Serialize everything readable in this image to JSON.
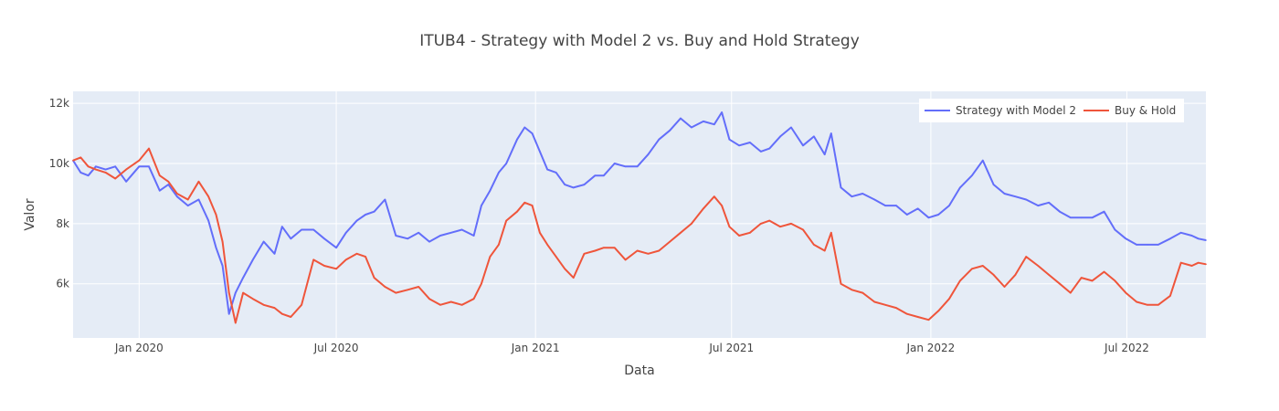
{
  "chart_data": {
    "type": "line",
    "title": "ITUB4 - Strategy with Model 2 vs. Buy and Hold Strategy",
    "xlabel": "Data",
    "ylabel": "Valor",
    "xlim": [
      "2019-11-01",
      "2022-09-12"
    ],
    "ylim": [
      4200,
      12400
    ],
    "x_ticks": [
      {
        "date": "2020-01-01",
        "label": "Jan 2020"
      },
      {
        "date": "2020-07-01",
        "label": "Jul 2020"
      },
      {
        "date": "2021-01-01",
        "label": "Jan 2021"
      },
      {
        "date": "2021-07-01",
        "label": "Jul 2021"
      },
      {
        "date": "2022-01-01",
        "label": "Jan 2022"
      },
      {
        "date": "2022-07-01",
        "label": "Jul 2022"
      }
    ],
    "y_ticks": [
      {
        "value": 6000,
        "label": "6k"
      },
      {
        "value": 8000,
        "label": "8k"
      },
      {
        "value": 10000,
        "label": "10k"
      },
      {
        "value": 12000,
        "label": "12k"
      }
    ],
    "grid": true,
    "legend_position": "top-right",
    "background_color": "#e5ecf6",
    "series": [
      {
        "name": "Strategy with Model 2",
        "color": "#636efa",
        "x": [
          "2019-11-01",
          "2019-11-08",
          "2019-11-15",
          "2019-11-22",
          "2019-12-01",
          "2019-12-10",
          "2019-12-20",
          "2020-01-01",
          "2020-01-10",
          "2020-01-20",
          "2020-01-28",
          "2020-02-05",
          "2020-02-15",
          "2020-02-25",
          "2020-03-05",
          "2020-03-12",
          "2020-03-18",
          "2020-03-24",
          "2020-03-30",
          "2020-04-06",
          "2020-04-15",
          "2020-04-25",
          "2020-05-05",
          "2020-05-12",
          "2020-05-20",
          "2020-05-30",
          "2020-06-10",
          "2020-06-20",
          "2020-07-01",
          "2020-07-10",
          "2020-07-20",
          "2020-07-28",
          "2020-08-05",
          "2020-08-15",
          "2020-08-25",
          "2020-09-05",
          "2020-09-15",
          "2020-09-25",
          "2020-10-05",
          "2020-10-15",
          "2020-10-25",
          "2020-11-05",
          "2020-11-12",
          "2020-11-20",
          "2020-11-28",
          "2020-12-05",
          "2020-12-15",
          "2020-12-22",
          "2020-12-29",
          "2021-01-05",
          "2021-01-12",
          "2021-01-20",
          "2021-01-28",
          "2021-02-05",
          "2021-02-15",
          "2021-02-25",
          "2021-03-05",
          "2021-03-15",
          "2021-03-25",
          "2021-04-05",
          "2021-04-15",
          "2021-04-25",
          "2021-05-05",
          "2021-05-15",
          "2021-05-25",
          "2021-06-05",
          "2021-06-15",
          "2021-06-22",
          "2021-06-29",
          "2021-07-08",
          "2021-07-18",
          "2021-07-28",
          "2021-08-05",
          "2021-08-15",
          "2021-08-25",
          "2021-09-05",
          "2021-09-15",
          "2021-09-25",
          "2021-10-01",
          "2021-10-10",
          "2021-10-20",
          "2021-10-30",
          "2021-11-10",
          "2021-11-20",
          "2021-11-30",
          "2021-12-10",
          "2021-12-20",
          "2021-12-30",
          "2022-01-08",
          "2022-01-18",
          "2022-01-28",
          "2022-02-08",
          "2022-02-18",
          "2022-02-28",
          "2022-03-10",
          "2022-03-20",
          "2022-03-30",
          "2022-04-10",
          "2022-04-20",
          "2022-04-30",
          "2022-05-10",
          "2022-05-20",
          "2022-05-30",
          "2022-06-10",
          "2022-06-20",
          "2022-06-30",
          "2022-07-10",
          "2022-07-20",
          "2022-07-30",
          "2022-08-10",
          "2022-08-20",
          "2022-08-30",
          "2022-09-05",
          "2022-09-12"
        ],
        "y": [
          10100,
          9700,
          9600,
          9900,
          9800,
          9900,
          9400,
          9900,
          9900,
          9100,
          9300,
          8900,
          8600,
          8800,
          8100,
          7200,
          6600,
          5000,
          5700,
          6200,
          6800,
          7400,
          7000,
          7900,
          7500,
          7800,
          7800,
          7500,
          7200,
          7700,
          8100,
          8300,
          8400,
          8800,
          7600,
          7500,
          7700,
          7400,
          7600,
          7700,
          7800,
          7600,
          8600,
          9100,
          9700,
          10000,
          10800,
          11200,
          11000,
          10400,
          9800,
          9700,
          9300,
          9200,
          9300,
          9600,
          9600,
          10000,
          9900,
          9900,
          10300,
          10800,
          11100,
          11500,
          11200,
          11400,
          11300,
          11700,
          10800,
          10600,
          10700,
          10400,
          10500,
          10900,
          11200,
          10600,
          10900,
          10300,
          11000,
          9200,
          8900,
          9000,
          8800,
          8600,
          8600,
          8300,
          8500,
          8200,
          8300,
          8600,
          9200,
          9600,
          10100,
          9300,
          9000,
          8900,
          8800,
          8600,
          8700,
          8400,
          8200,
          8200,
          8200,
          8400,
          7800,
          7500,
          7300,
          7300,
          7300,
          7500,
          7700,
          7600,
          7500,
          7450
        ]
      },
      {
        "name": "Buy & Hold",
        "color": "#ef553b",
        "x": [
          "2019-11-01",
          "2019-11-08",
          "2019-11-15",
          "2019-11-22",
          "2019-12-01",
          "2019-12-10",
          "2019-12-20",
          "2020-01-01",
          "2020-01-10",
          "2020-01-20",
          "2020-01-28",
          "2020-02-05",
          "2020-02-15",
          "2020-02-25",
          "2020-03-05",
          "2020-03-12",
          "2020-03-18",
          "2020-03-24",
          "2020-03-30",
          "2020-04-06",
          "2020-04-15",
          "2020-04-25",
          "2020-05-05",
          "2020-05-12",
          "2020-05-20",
          "2020-05-30",
          "2020-06-10",
          "2020-06-20",
          "2020-07-01",
          "2020-07-10",
          "2020-07-20",
          "2020-07-28",
          "2020-08-05",
          "2020-08-15",
          "2020-08-25",
          "2020-09-05",
          "2020-09-15",
          "2020-09-25",
          "2020-10-05",
          "2020-10-15",
          "2020-10-25",
          "2020-11-05",
          "2020-11-12",
          "2020-11-20",
          "2020-11-28",
          "2020-12-05",
          "2020-12-15",
          "2020-12-22",
          "2020-12-29",
          "2021-01-05",
          "2021-01-12",
          "2021-01-20",
          "2021-01-28",
          "2021-02-05",
          "2021-02-15",
          "2021-02-25",
          "2021-03-05",
          "2021-03-15",
          "2021-03-25",
          "2021-04-05",
          "2021-04-15",
          "2021-04-25",
          "2021-05-05",
          "2021-05-15",
          "2021-05-25",
          "2021-06-05",
          "2021-06-15",
          "2021-06-22",
          "2021-06-29",
          "2021-07-08",
          "2021-07-18",
          "2021-07-28",
          "2021-08-05",
          "2021-08-15",
          "2021-08-25",
          "2021-09-05",
          "2021-09-15",
          "2021-09-25",
          "2021-10-01",
          "2021-10-10",
          "2021-10-20",
          "2021-10-30",
          "2021-11-10",
          "2021-11-20",
          "2021-11-30",
          "2021-12-10",
          "2021-12-20",
          "2021-12-30",
          "2022-01-08",
          "2022-01-18",
          "2022-01-28",
          "2022-02-08",
          "2022-02-18",
          "2022-02-28",
          "2022-03-10",
          "2022-03-20",
          "2022-03-30",
          "2022-04-10",
          "2022-04-20",
          "2022-04-30",
          "2022-05-10",
          "2022-05-20",
          "2022-05-30",
          "2022-06-10",
          "2022-06-20",
          "2022-06-30",
          "2022-07-10",
          "2022-07-20",
          "2022-07-30",
          "2022-08-10",
          "2022-08-20",
          "2022-08-30",
          "2022-09-05",
          "2022-09-12"
        ],
        "y": [
          10100,
          10200,
          9900,
          9800,
          9700,
          9500,
          9800,
          10100,
          10500,
          9600,
          9400,
          9000,
          8800,
          9400,
          8900,
          8300,
          7400,
          5700,
          4700,
          5700,
          5500,
          5300,
          5200,
          5000,
          4900,
          5300,
          6800,
          6600,
          6500,
          6800,
          7000,
          6900,
          6200,
          5900,
          5700,
          5800,
          5900,
          5500,
          5300,
          5400,
          5300,
          5500,
          6000,
          6900,
          7300,
          8100,
          8400,
          8700,
          8600,
          7700,
          7300,
          6900,
          6500,
          6200,
          7000,
          7100,
          7200,
          7200,
          6800,
          7100,
          7000,
          7100,
          7400,
          7700,
          8000,
          8500,
          8900,
          8600,
          7900,
          7600,
          7700,
          8000,
          8100,
          7900,
          8000,
          7800,
          7300,
          7100,
          7700,
          6000,
          5800,
          5700,
          5400,
          5300,
          5200,
          5000,
          4900,
          4800,
          5100,
          5500,
          6100,
          6500,
          6600,
          6300,
          5900,
          6300,
          6900,
          6600,
          6300,
          6000,
          5700,
          6200,
          6100,
          6400,
          6100,
          5700,
          5400,
          5300,
          5300,
          5600,
          6700,
          6600,
          6700,
          6650
        ]
      }
    ]
  }
}
